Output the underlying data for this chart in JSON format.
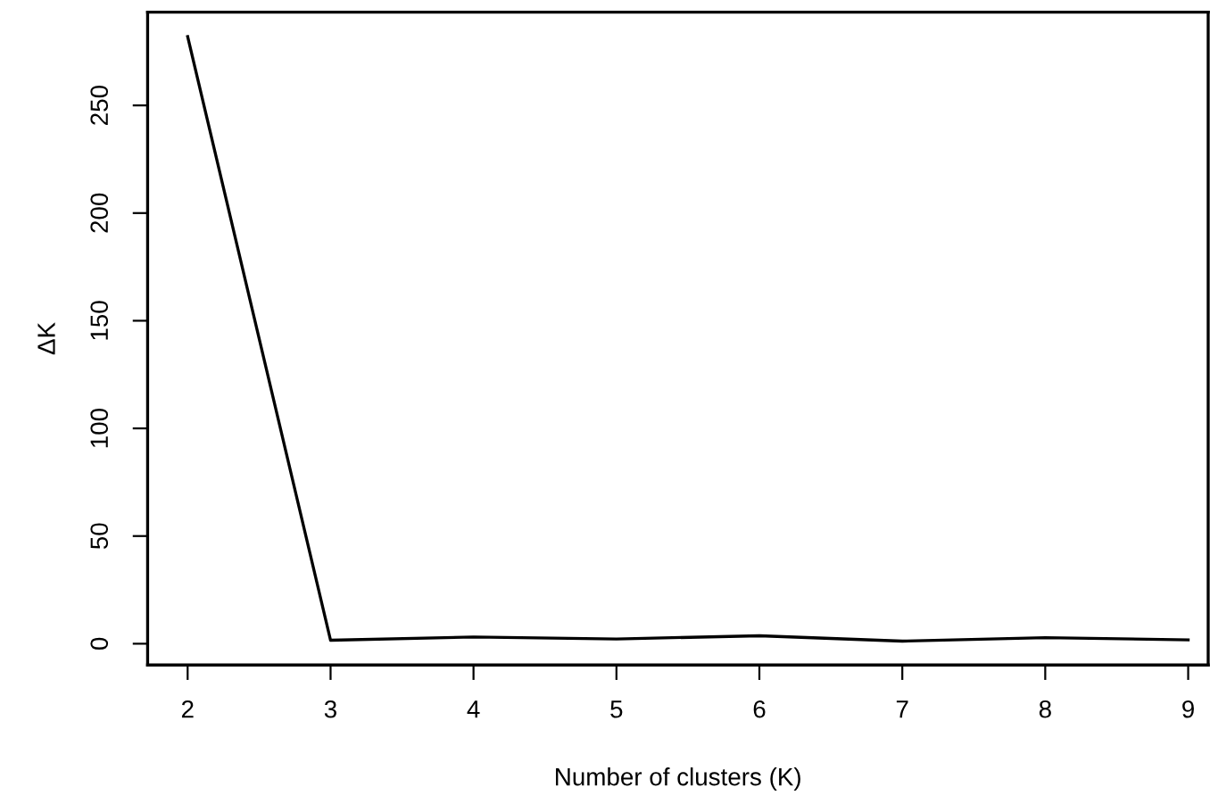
{
  "chart_data": {
    "type": "line",
    "xlabel": "Number of clusters (K)",
    "ylabel": "ΔK",
    "x": [
      2,
      3,
      4,
      5,
      6,
      7,
      8,
      9
    ],
    "series": [
      {
        "color": "#000000",
        "values": [
          282,
          1.6,
          3.1,
          2.2,
          3.7,
          1.2,
          2.8,
          1.8
        ]
      }
    ],
    "xlim": [
      1.72,
      9.14
    ],
    "ylim": [
      -9.9,
      293.3
    ],
    "xticks": [
      2,
      3,
      4,
      5,
      6,
      7,
      8,
      9
    ],
    "yticks": [
      0,
      50,
      100,
      150,
      200,
      250
    ],
    "grid": false,
    "legend": false,
    "marker": "none",
    "line_style": "solid"
  }
}
